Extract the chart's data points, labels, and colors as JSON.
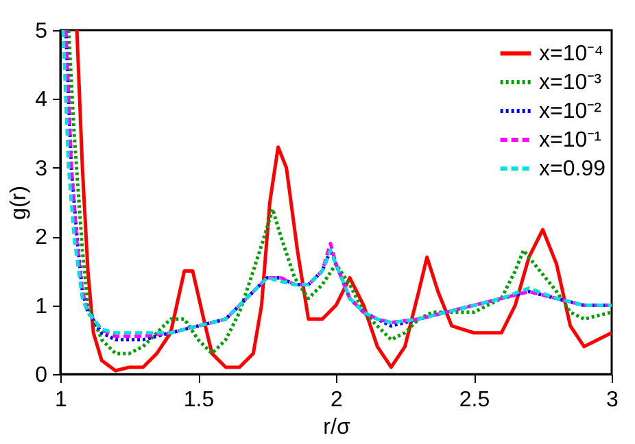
{
  "chart_data": {
    "type": "line",
    "xlabel": "r/σ",
    "ylabel": "g(r)",
    "xlim": [
      1,
      3
    ],
    "ylim": [
      0,
      5
    ],
    "xticks": [
      1,
      1.5,
      2,
      2.5,
      3
    ],
    "yticks": [
      0,
      1,
      2,
      3,
      4,
      5
    ],
    "grid": false,
    "legend": "top right",
    "marker": "none",
    "series": [
      {
        "name": "x=10⁻⁴",
        "color": "#ff0000",
        "line_style": "solid",
        "x": [
          1.06,
          1.08,
          1.1,
          1.12,
          1.15,
          1.2,
          1.25,
          1.3,
          1.35,
          1.4,
          1.45,
          1.48,
          1.52,
          1.55,
          1.6,
          1.65,
          1.7,
          1.73,
          1.76,
          1.79,
          1.82,
          1.86,
          1.9,
          1.95,
          2.0,
          2.05,
          2.1,
          2.15,
          2.2,
          2.25,
          2.3,
          2.33,
          2.37,
          2.42,
          2.5,
          2.6,
          2.65,
          2.7,
          2.75,
          2.8,
          2.85,
          2.9,
          2.95,
          3.0
        ],
        "values": [
          5,
          3,
          1.5,
          0.6,
          0.2,
          0.05,
          0.1,
          0.1,
          0.3,
          0.6,
          1.5,
          1.5,
          0.8,
          0.3,
          0.1,
          0.1,
          0.3,
          1.0,
          2.5,
          3.3,
          3.0,
          1.8,
          0.8,
          0.8,
          1.0,
          1.4,
          1.0,
          0.4,
          0.1,
          0.4,
          1.2,
          1.7,
          1.2,
          0.7,
          0.6,
          0.6,
          1.0,
          1.7,
          2.1,
          1.6,
          0.7,
          0.4,
          0.5,
          0.6
        ]
      },
      {
        "name": "x=10⁻³",
        "color": "#00a000",
        "line_style": "dotted",
        "x": [
          1.03,
          1.05,
          1.08,
          1.1,
          1.15,
          1.2,
          1.25,
          1.3,
          1.35,
          1.4,
          1.45,
          1.5,
          1.55,
          1.6,
          1.65,
          1.7,
          1.74,
          1.77,
          1.8,
          1.85,
          1.9,
          1.95,
          2.0,
          2.05,
          2.1,
          2.15,
          2.2,
          2.25,
          2.3,
          2.35,
          2.4,
          2.5,
          2.55,
          2.6,
          2.65,
          2.68,
          2.72,
          2.8,
          2.85,
          2.9,
          3.0
        ],
        "values": [
          5,
          3.5,
          1.8,
          1.0,
          0.5,
          0.3,
          0.3,
          0.4,
          0.6,
          0.8,
          0.8,
          0.5,
          0.3,
          0.5,
          0.9,
          1.5,
          2.0,
          2.4,
          2.0,
          1.4,
          1.1,
          1.3,
          1.6,
          1.3,
          0.9,
          0.7,
          0.5,
          0.6,
          0.8,
          0.9,
          0.9,
          0.9,
          1.0,
          1.1,
          1.5,
          1.8,
          1.6,
          1.2,
          0.9,
          0.8,
          0.9
        ]
      },
      {
        "name": "x=10⁻²",
        "color": "#0000ff",
        "line_style": "dotted",
        "x": [
          1.02,
          1.04,
          1.06,
          1.08,
          1.1,
          1.15,
          1.2,
          1.3,
          1.4,
          1.5,
          1.6,
          1.7,
          1.75,
          1.8,
          1.85,
          1.9,
          1.95,
          1.98,
          2.0,
          2.05,
          2.1,
          2.15,
          2.2,
          2.3,
          2.4,
          2.5,
          2.6,
          2.7,
          2.8,
          2.9,
          3.0
        ],
        "values": [
          5,
          3,
          2,
          1.2,
          0.9,
          0.6,
          0.5,
          0.5,
          0.6,
          0.7,
          0.8,
          1.2,
          1.4,
          1.4,
          1.3,
          1.3,
          1.5,
          1.8,
          1.6,
          1.1,
          0.9,
          0.8,
          0.7,
          0.8,
          0.9,
          1.0,
          1.1,
          1.2,
          1.1,
          1.0,
          1.0
        ]
      },
      {
        "name": "x=10⁻¹",
        "color": "#ff00ff",
        "line_style": "dashed",
        "x": [
          1.02,
          1.04,
          1.06,
          1.08,
          1.1,
          1.15,
          1.2,
          1.3,
          1.4,
          1.5,
          1.6,
          1.7,
          1.75,
          1.8,
          1.85,
          1.9,
          1.95,
          1.98,
          2.0,
          2.05,
          2.1,
          2.15,
          2.2,
          2.3,
          2.4,
          2.5,
          2.6,
          2.7,
          2.8,
          2.9,
          3.0
        ],
        "values": [
          5,
          3,
          1.9,
          1.2,
          0.9,
          0.65,
          0.55,
          0.55,
          0.6,
          0.7,
          0.8,
          1.2,
          1.4,
          1.4,
          1.3,
          1.3,
          1.5,
          1.9,
          1.6,
          1.1,
          0.9,
          0.8,
          0.75,
          0.8,
          0.9,
          1.0,
          1.1,
          1.2,
          1.1,
          1.0,
          1.0
        ]
      },
      {
        "name": "x=0.99",
        "color": "#00e0e0",
        "line_style": "dashed",
        "x": [
          1.01,
          1.03,
          1.05,
          1.08,
          1.1,
          1.15,
          1.2,
          1.3,
          1.4,
          1.5,
          1.6,
          1.7,
          1.75,
          1.8,
          1.85,
          1.9,
          1.95,
          1.98,
          2.0,
          2.05,
          2.1,
          2.15,
          2.2,
          2.3,
          2.4,
          2.5,
          2.6,
          2.7,
          2.8,
          2.9,
          3.0
        ],
        "values": [
          5,
          3,
          2,
          1.1,
          0.9,
          0.65,
          0.6,
          0.6,
          0.6,
          0.7,
          0.8,
          1.2,
          1.4,
          1.35,
          1.3,
          1.3,
          1.5,
          1.8,
          1.6,
          1.1,
          0.9,
          0.8,
          0.75,
          0.8,
          0.9,
          1.0,
          1.1,
          1.25,
          1.1,
          1.0,
          1.0
        ]
      }
    ]
  }
}
